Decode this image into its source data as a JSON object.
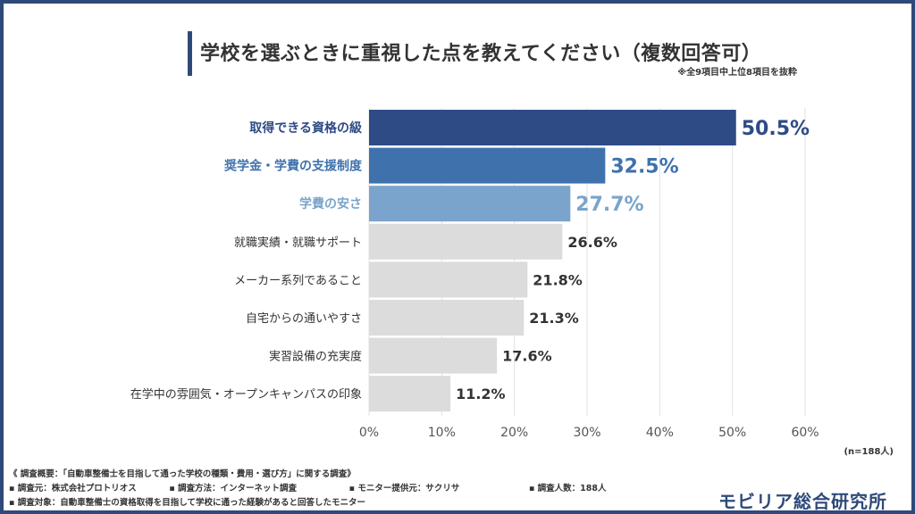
{
  "title": "学校を選ぶときに重視した点を教えてください（複数回答可）",
  "note": "※全9項目中上位8項目を抜粋",
  "colors": {
    "frame": "#2f4a7a",
    "highlight": [
      "#2e4b86",
      "#3f72ad",
      "#7aa4cb"
    ],
    "other_bar": "#dcdcdc",
    "other_text": "#333333",
    "grid": "#e2e2e2"
  },
  "chart_data": {
    "type": "bar",
    "orientation": "horizontal",
    "categories": [
      "取得できる資格の級",
      "奨学金・学費の支援制度",
      "学費の安さ",
      "就職実績・就職サポート",
      "メーカー系列であること",
      "自宅からの通いやすさ",
      "実習設備の充実度",
      "在学中の雰囲気・オープンキャンパスの印象"
    ],
    "values": [
      50.5,
      32.5,
      27.7,
      26.6,
      21.8,
      21.3,
      17.6,
      11.2
    ],
    "value_labels": [
      "50.5%",
      "32.5%",
      "27.7%",
      "26.6%",
      "21.8%",
      "21.3%",
      "17.6%",
      "11.2%"
    ],
    "xlim": [
      0,
      60
    ],
    "xticks": [
      0,
      10,
      20,
      30,
      40,
      50,
      60
    ],
    "xtick_labels": [
      "0%",
      "10%",
      "20%",
      "30%",
      "40%",
      "50%",
      "60%"
    ],
    "grid": true
  },
  "sample_size": "(n=188人)",
  "footer": {
    "overview": "《 調査概要：「自動車整備士を目指して通った学校の種類・費用・選び方」に関する調査》",
    "source": "▪ 調査元：株式会社プロトリオス",
    "method": "▪ 調査方法：インターネット調査",
    "monitor": "▪ モニター提供元：サクリサ",
    "respondents": "▪ 調査人数：188人",
    "target": "▪ 調査対象：自動車整備士の資格取得を目指して学校に通った経験があると回答したモニター"
  },
  "logo": "モビリア総合研究所"
}
